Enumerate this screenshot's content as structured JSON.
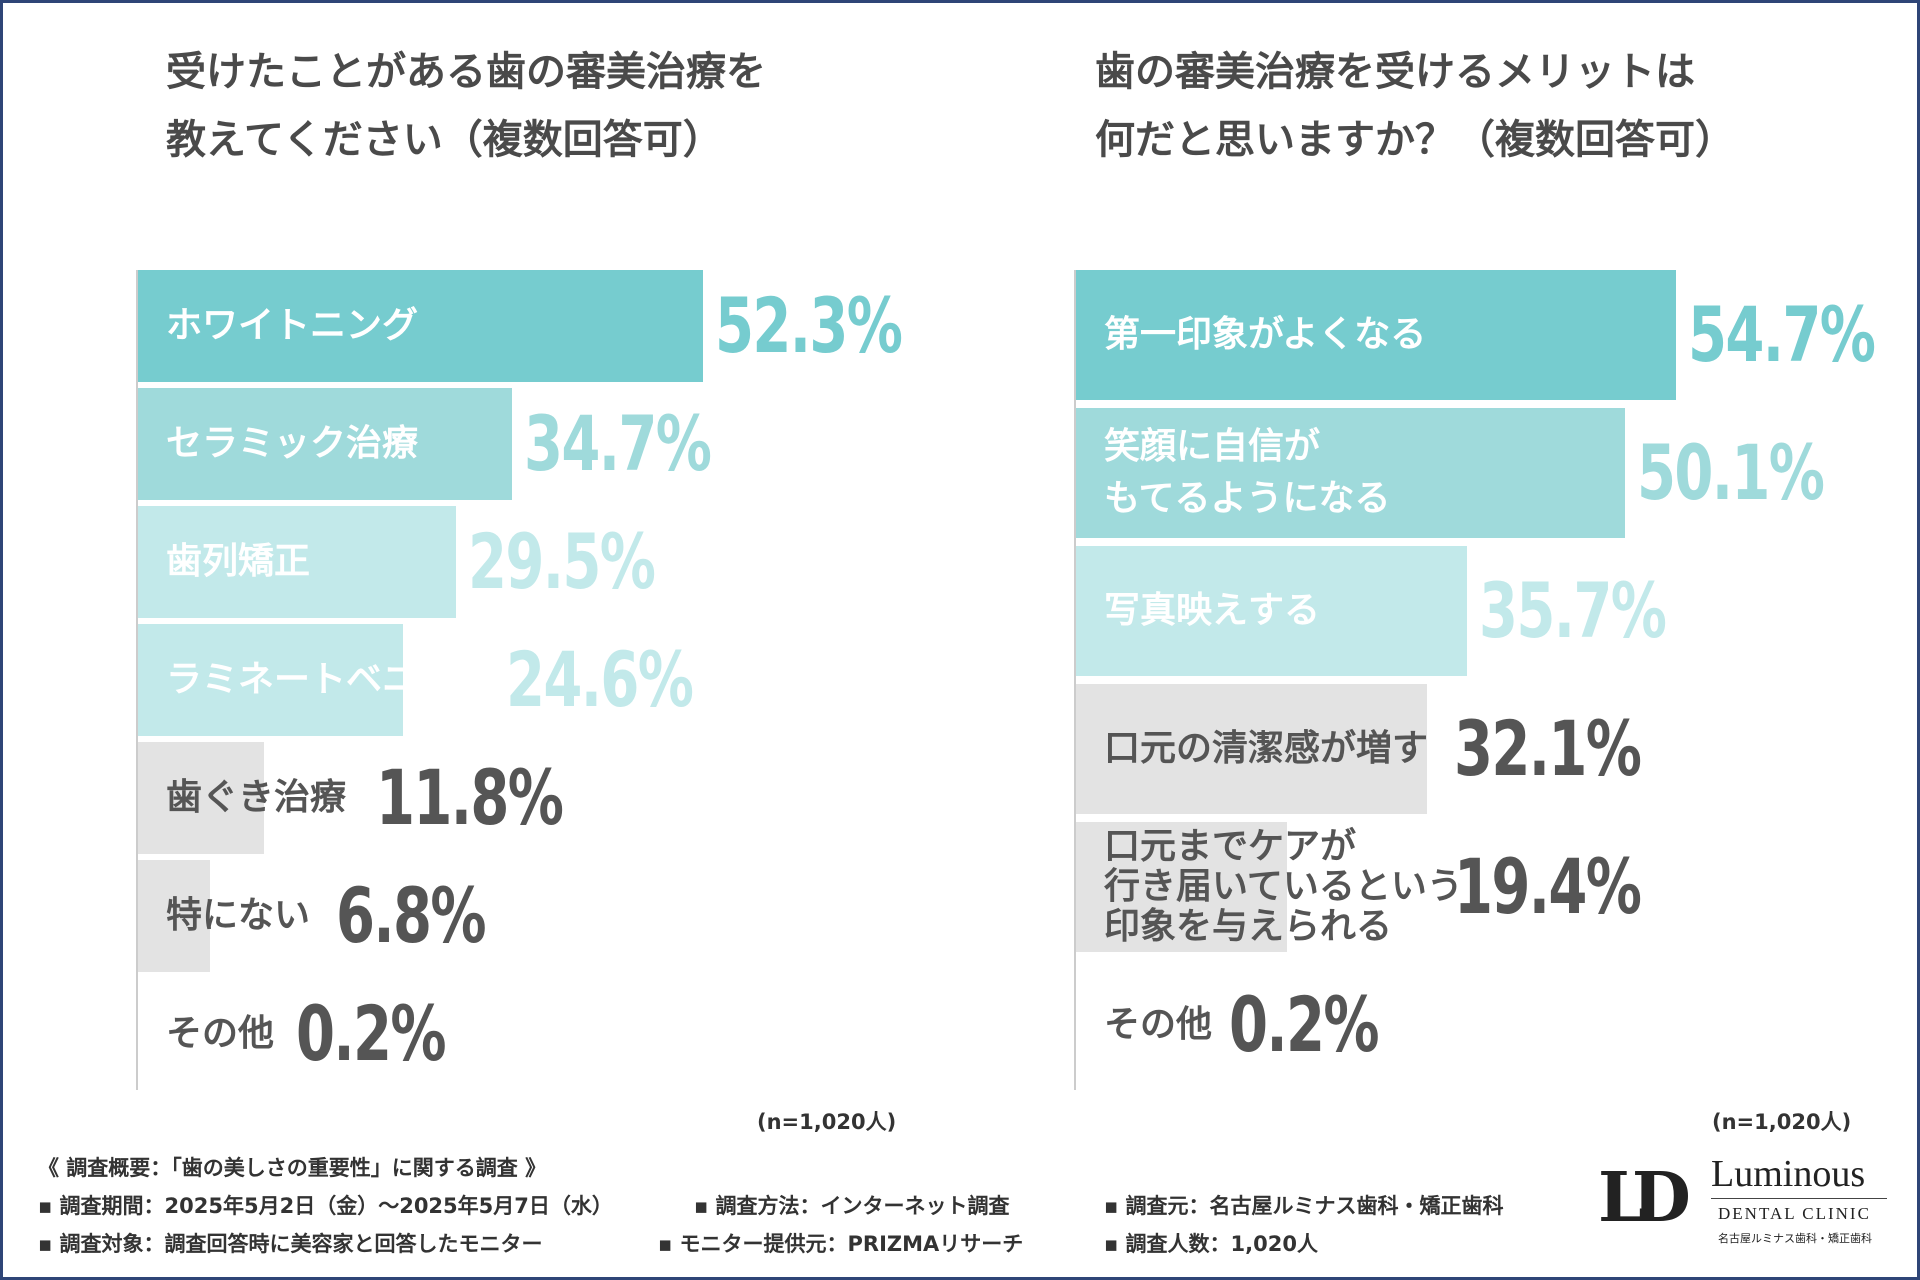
{
  "left": {
    "title_line1": "受けたことがある歯の審美治療を",
    "title_line2": "教えてください（複数回答可）",
    "n_label": "(n=1,020人)"
  },
  "right": {
    "title_line1": "歯の審美治療を受けるメリットは",
    "title_line2": "何だと思いますか？（複数回答可）",
    "n_label": "(n=1,020人)"
  },
  "chart_data": [
    {
      "type": "bar",
      "orientation": "horizontal",
      "title": "受けたことがある歯の審美治療を教えてください（複数回答可）",
      "unit": "%",
      "xlim": [
        0,
        60
      ],
      "categories": [
        "ホワイトニング",
        "セラミック治療",
        "歯列矯正",
        "ラミネートベニア",
        "歯ぐき治療",
        "特にない",
        "その他"
      ],
      "values": [
        52.3,
        34.7,
        29.5,
        24.6,
        11.8,
        6.8,
        0.2
      ],
      "value_labels": [
        "52.3%",
        "34.7%",
        "29.5%",
        "24.6%",
        "11.8%",
        "6.8%",
        "0.2%"
      ],
      "bar_colors": [
        "#76cccf",
        "#9fdadb",
        "#c2e9ea",
        "#c2e9ea",
        "#e3e3e3",
        "#e3e3e3",
        "#e3e3e3"
      ],
      "value_colors": [
        "#76cccf",
        "#9fdadb",
        "#c2e9ea",
        "#c2e9ea",
        "#555555",
        "#555555",
        "#555555"
      ],
      "label_colors": [
        "#ffffff",
        "#ffffff",
        "#ffffff",
        "#ffffff",
        "#555555",
        "#555555",
        "#555555"
      ],
      "sample": "(n=1,020人)"
    },
    {
      "type": "bar",
      "orientation": "horizontal",
      "title": "歯の審美治療を受けるメリットは何だと思いますか？（複数回答可）",
      "unit": "%",
      "xlim": [
        0,
        60
      ],
      "categories": [
        "第一印象がよくなる",
        "笑顔に自信がもてるようになる",
        "写真映えする",
        "口元の清潔感が増す",
        "口元までケアが行き届いているという印象を与えられる",
        "その他"
      ],
      "category_lines": [
        [
          "第一印象がよくなる"
        ],
        [
          "笑顔に自信が",
          "もてるようになる"
        ],
        [
          "写真映えする"
        ],
        [
          "口元の清潔感が増す"
        ],
        [
          "口元までケアが",
          "行き届いているという",
          "印象を与えられる"
        ],
        [
          "その他"
        ]
      ],
      "values": [
        54.7,
        50.1,
        35.7,
        32.1,
        19.4,
        0.2
      ],
      "value_labels": [
        "54.7%",
        "50.1%",
        "35.7%",
        "32.1%",
        "19.4%",
        "0.2%"
      ],
      "bar_colors": [
        "#76cccf",
        "#9fdadb",
        "#c2e9ea",
        "#e3e3e3",
        "#e3e3e3",
        "#e3e3e3"
      ],
      "value_colors": [
        "#76cccf",
        "#9fdadb",
        "#c2e9ea",
        "#555555",
        "#555555",
        "#555555"
      ],
      "label_colors": [
        "#ffffff",
        "#ffffff",
        "#ffffff",
        "#555555",
        "#555555",
        "#555555"
      ],
      "sample": "(n=1,020人)"
    }
  ],
  "footer": {
    "heading": "《 調査概要：「歯の美しさの重要性」に関する調査 》",
    "period": "▪ 調査期間：2025年5月2日（金）～2025年5月7日（水）",
    "method": "▪ 調査方法：インターネット調査",
    "source": "▪ 調査元：名古屋ルミナス歯科・矯正歯科",
    "target": "▪ 調査対象：調査回答時に美容家と回答したモニター",
    "provider": "▪ モニター提供元：PRIZMAリサーチ",
    "count": "▪ 調査人数：1,020人"
  },
  "logo": {
    "mark": "LD",
    "name": "Luminous",
    "sub": "DENTAL CLINIC",
    "jp": "名古屋ルミナス歯科・矯正歯科"
  },
  "colors": {
    "frame": "#2f4577",
    "teal": "#76cccf",
    "gray_bar": "#e3e3e3"
  }
}
